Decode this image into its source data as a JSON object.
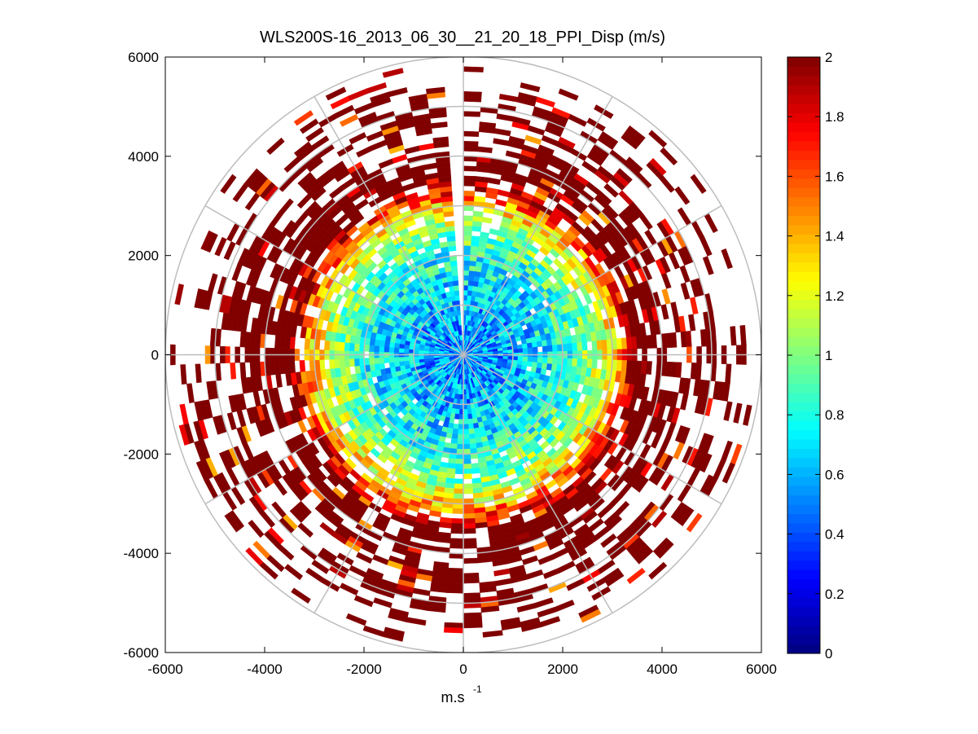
{
  "chart_data": {
    "type": "heatmap",
    "subtype": "polar-ppi-scan",
    "title": "WLS200S-16_2013_06_30__21_20_18_PPI_Disp (m/s)",
    "xlabel": "m.s",
    "xlabel_superscript": "-1",
    "ylabel": "",
    "xlim": [
      -6000,
      6000
    ],
    "ylim": [
      -6000,
      6000
    ],
    "x_ticks": [
      -6000,
      -4000,
      -2000,
      0,
      2000,
      4000,
      6000
    ],
    "y_ticks": [
      6000,
      4000,
      2000,
      0,
      -2000,
      -4000,
      -6000
    ],
    "x_tick_labels": [
      "-6000",
      "-4000",
      "-2000",
      "0",
      "2000",
      "4000",
      "6000"
    ],
    "y_tick_labels": [
      "6000",
      "4000",
      "2000",
      "0",
      "-2000",
      "-4000",
      "-6000"
    ],
    "polar_grid_rings": [
      1000,
      2000,
      3000,
      4000,
      5000,
      6000
    ],
    "polar_grid_spokes_deg": [
      0,
      30,
      60,
      90,
      120,
      150,
      180,
      210,
      240,
      270,
      300,
      330
    ],
    "colorbar": {
      "min": 0,
      "max": 2,
      "tick_values": [
        2,
        1.8,
        1.6,
        1.4,
        1.2,
        1,
        0.8,
        0.6,
        0.4,
        0.2,
        0
      ],
      "tick_labels": [
        "2",
        "1.8",
        "1.6",
        "1.4",
        "1.2",
        "1",
        "0.8",
        "0.6",
        "0.4",
        "0.2",
        "0"
      ],
      "colormap": "jet"
    },
    "value_profile": {
      "range_m": [
        0,
        500,
        1000,
        1500,
        2000,
        2500,
        3000,
        3500,
        4000,
        4500,
        5000,
        5500,
        6000
      ],
      "typical_value": [
        0.5,
        0.55,
        0.6,
        0.7,
        0.8,
        1.0,
        1.3,
        2.0,
        2.0,
        2.0,
        2.0,
        2.0,
        2.0
      ],
      "data_coverage": [
        1.0,
        1.0,
        1.0,
        0.98,
        0.95,
        0.9,
        0.85,
        0.75,
        0.65,
        0.55,
        0.4,
        0.25,
        0.1
      ]
    },
    "gap_sector_deg": [
      -4,
      1
    ],
    "max_range_m": 6000
  },
  "colors": {
    "grid": "#bdbdbd",
    "axis": "#000000",
    "background": "#ffffff",
    "no_data": "#ffffff"
  }
}
